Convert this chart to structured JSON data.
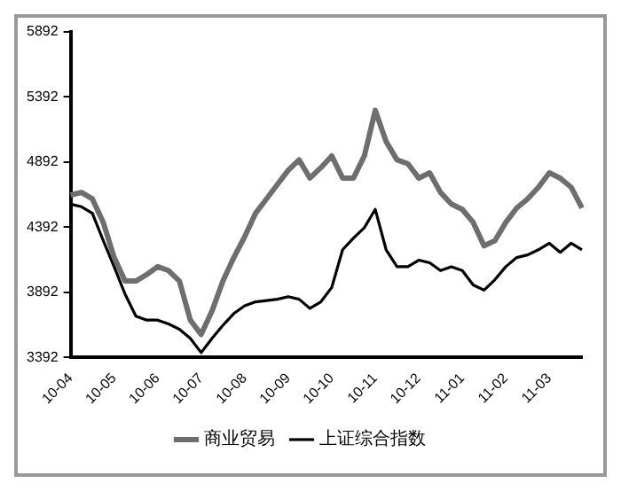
{
  "chart_data": {
    "type": "line",
    "categories": [
      "10-04",
      null,
      null,
      null,
      "10-05",
      null,
      null,
      null,
      "10-06",
      null,
      null,
      null,
      "10-07",
      null,
      null,
      null,
      "10-08",
      null,
      null,
      null,
      "10-09",
      null,
      null,
      null,
      "10-10",
      null,
      null,
      null,
      "10-11",
      null,
      null,
      null,
      "10-12",
      null,
      null,
      null,
      "11-01",
      null,
      null,
      null,
      "11-02",
      null,
      null,
      null,
      "11-03",
      null,
      null,
      null
    ],
    "series": [
      {
        "name": "商业贸易",
        "color": "#6e6e6e",
        "values": [
          4640,
          4660,
          4610,
          4430,
          4160,
          3980,
          3980,
          4030,
          4090,
          4060,
          3980,
          3680,
          3570,
          3750,
          3980,
          4160,
          4320,
          4500,
          4610,
          4720,
          4830,
          4910,
          4770,
          4850,
          4940,
          4770,
          4770,
          4940,
          5290,
          5050,
          4910,
          4880,
          4770,
          4810,
          4660,
          4570,
          4530,
          4430,
          4250,
          4290,
          4430,
          4540,
          4610,
          4700,
          4810,
          4770,
          4700,
          4540
        ]
      },
      {
        "name": "上证综合指数",
        "color": "#000000",
        "values": [
          4570,
          4550,
          4500,
          4290,
          4090,
          3880,
          3710,
          3680,
          3680,
          3650,
          3610,
          3540,
          3430,
          3540,
          3640,
          3730,
          3790,
          3820,
          3830,
          3840,
          3860,
          3840,
          3770,
          3820,
          3930,
          4220,
          4310,
          4390,
          4530,
          4220,
          4090,
          4090,
          4140,
          4120,
          4060,
          4090,
          4060,
          3950,
          3910,
          3990,
          4090,
          4160,
          4180,
          4220,
          4270,
          4200,
          4270,
          4220
        ]
      }
    ],
    "ylim": [
      3392,
      5892
    ],
    "yticks": [
      3392,
      3892,
      4392,
      4892,
      5392,
      5892
    ],
    "grid": false,
    "legend": "bottom",
    "marker": "none",
    "line_style": "solid"
  }
}
